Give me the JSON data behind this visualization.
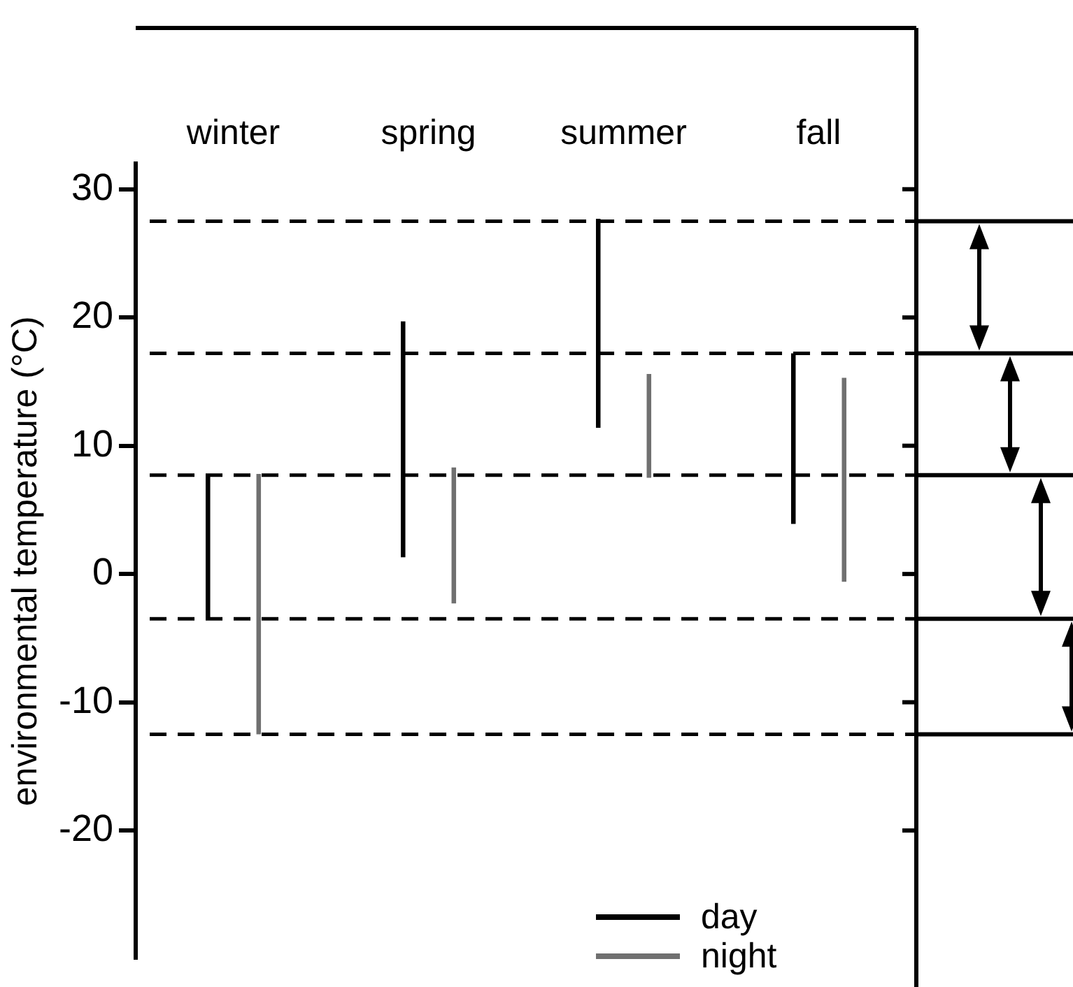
{
  "chart_data": {
    "type": "bar",
    "ylabel": "environmental temperature (°C)",
    "categories": [
      "winter",
      "spring",
      "summer",
      "fall"
    ],
    "series": [
      {
        "name": "day",
        "color": "#000000",
        "base": [
          -3.5,
          1.3,
          11.4,
          3.9
        ],
        "values": [
          11.3,
          18.4,
          16.3,
          13.3
        ]
      },
      {
        "name": "night",
        "color": "#707070",
        "base": [
          -12.5,
          -2.3,
          7.5,
          -0.6
        ],
        "values": [
          20.3,
          10.6,
          8.1,
          15.9
        ]
      }
    ],
    "ylim": [
      -30,
      32
    ],
    "yticks": [
      -20,
      -10,
      0,
      10,
      20,
      30
    ],
    "ref_lines": [
      {
        "axis": "y",
        "value": 27.5,
        "line_style": "dashed"
      },
      {
        "axis": "y",
        "value": 17.2,
        "line_style": "dashed"
      },
      {
        "axis": "y",
        "value": 7.7,
        "line_style": "dashed"
      },
      {
        "axis": "y",
        "value": -3.5,
        "line_style": "dashed"
      },
      {
        "axis": "y",
        "value": -12.5,
        "line_style": "dashed"
      }
    ],
    "legend": "bottom right",
    "grid": false
  }
}
